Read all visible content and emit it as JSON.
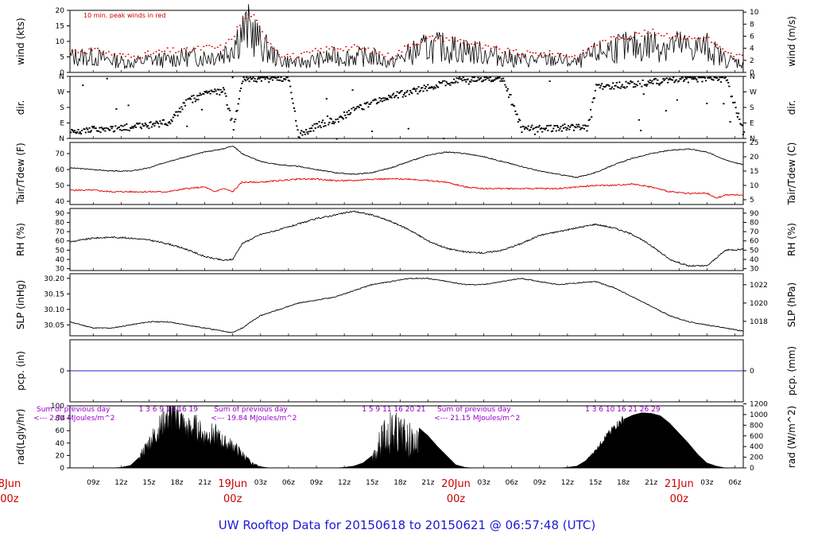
{
  "title": "UW Rooftop Data for 20150618  to  20150621 @ 06:57:48  (UTC)",
  "day_labels": [
    {
      "date": "8Jun",
      "hour": "00z",
      "t": 0
    },
    {
      "date": "19Jun",
      "hour": "00z",
      "t": 24
    },
    {
      "date": "20Jun",
      "hour": "00z",
      "t": 48
    },
    {
      "date": "21Jun",
      "hour": "00z",
      "t": 72
    }
  ],
  "x_ticks": [
    {
      "t": 9,
      "label": "09z"
    },
    {
      "t": 12,
      "label": "12z"
    },
    {
      "t": 15,
      "label": "15z"
    },
    {
      "t": 18,
      "label": "18z"
    },
    {
      "t": 21,
      "label": "21z"
    },
    {
      "t": 27,
      "label": "03z"
    },
    {
      "t": 30,
      "label": "06z"
    },
    {
      "t": 33,
      "label": "09z"
    },
    {
      "t": 36,
      "label": "12z"
    },
    {
      "t": 39,
      "label": "15z"
    },
    {
      "t": 42,
      "label": "18z"
    },
    {
      "t": 45,
      "label": "21z"
    },
    {
      "t": 51,
      "label": "03z"
    },
    {
      "t": 54,
      "label": "06z"
    },
    {
      "t": 57,
      "label": "09z"
    },
    {
      "t": 60,
      "label": "12z"
    },
    {
      "t": 63,
      "label": "15z"
    },
    {
      "t": 66,
      "label": "18z"
    },
    {
      "t": 69,
      "label": "21z"
    },
    {
      "t": 75,
      "label": "03z"
    },
    {
      "t": 78,
      "label": "06z"
    }
  ],
  "panels": {
    "wind": {
      "left_label": "wind (kts)",
      "right_label": "wind (m/s)",
      "left_ticks": [
        "0",
        "5",
        "10",
        "15",
        "20"
      ],
      "right_ticks": [
        "0",
        "2",
        "4",
        "6",
        "8",
        "10"
      ],
      "note": "10 min. peak winds in red"
    },
    "dir": {
      "left_label": "dir.",
      "right_label": "dir.",
      "left_ticks": [
        "N",
        "E",
        "S",
        "W",
        "N"
      ],
      "right_ticks": [
        "N",
        "E",
        "S",
        "W",
        "N"
      ]
    },
    "temp": {
      "left_label": "Tair/Tdew (F)",
      "right_label": "Tair/Tdew (C)",
      "left_ticks": [
        "40",
        "50",
        "60",
        "70"
      ],
      "right_ticks": [
        "5",
        "10",
        "15",
        "20",
        "25"
      ]
    },
    "rh": {
      "left_label": "RH (%)",
      "right_label": "RH (%)",
      "left_ticks": [
        "30",
        "40",
        "50",
        "60",
        "70",
        "80",
        "90"
      ],
      "right_ticks": [
        "30",
        "40",
        "50",
        "60",
        "70",
        "80",
        "90"
      ]
    },
    "slp": {
      "left_label": "SLP (inHg)",
      "right_label": "SLP (hPa)",
      "left_ticks": [
        "30.05",
        "30.10",
        "30.15",
        "30.20"
      ],
      "right_ticks": [
        "1018",
        "1020",
        "1022"
      ]
    },
    "pcp": {
      "left_label": "pcp. (in)",
      "right_label": "pcp. (mm)",
      "left_ticks": [
        "0"
      ],
      "right_ticks": [
        "0"
      ]
    },
    "rad": {
      "left_label": "rad(Lgly/hr)",
      "right_label": "rad (W/m^2)",
      "left_ticks": [
        "0",
        "20",
        "40",
        "60",
        "80",
        "100"
      ],
      "right_ticks": [
        "0",
        "200",
        "400",
        "600",
        "800",
        "1000",
        "1200"
      ],
      "daily_sums": [
        {
          "line1": "Sum of previous day",
          "line2": "<--- 2.74 MJoules/m^2",
          "t": -2
        },
        {
          "line1": "Sum of previous day",
          "line2": "<--- 19.84 MJoules/m^2",
          "t": 22
        },
        {
          "line1": "Sum of previous day",
          "line2": "<--- 21.15 MJoules/m^2",
          "t": 46
        }
      ],
      "hourly_totals": [
        {
          "t": 13.9,
          "text": "1   3   6   9   13  16   19"
        },
        {
          "t": 37.9,
          "text": "1   5   9   11   16   20   21"
        },
        {
          "t": 61.9,
          "text": "1   3   6  10   16   21   26   29"
        }
      ]
    }
  },
  "chart_data": {
    "type": "line",
    "x_unit": "hours since 2015-06-18 00z",
    "x_range": [
      6.5,
      78.9
    ],
    "series": [
      {
        "name": "wind",
        "ylim": [
          0,
          20
        ],
        "x": [
          7,
          9,
          11,
          13,
          15,
          17,
          19,
          21,
          23,
          24,
          25,
          26,
          27,
          29,
          31,
          33,
          35,
          37,
          39,
          41,
          43,
          45,
          47,
          49,
          51,
          53,
          55,
          57,
          59,
          61,
          63,
          65,
          67,
          69,
          71,
          73,
          75,
          77,
          78.9
        ],
        "y": [
          5,
          5,
          4,
          3,
          4,
          4,
          5,
          5,
          6,
          9,
          13,
          14,
          9,
          4,
          3,
          4,
          5,
          5,
          5,
          3,
          6,
          8,
          8,
          7,
          6,
          5,
          4,
          4,
          4,
          3,
          6,
          8,
          8,
          9,
          9,
          8,
          8,
          4,
          3
        ]
      },
      {
        "name": "wind_peak",
        "ylim": [
          0,
          20
        ],
        "x": [
          7,
          9,
          11,
          13,
          15,
          17,
          19,
          21,
          23,
          24,
          25,
          26,
          27,
          29,
          31,
          33,
          35,
          37,
          39,
          41,
          43,
          45,
          47,
          49,
          51,
          53,
          55,
          57,
          59,
          61,
          63,
          65,
          67,
          69,
          71,
          73,
          75,
          77,
          78.9
        ],
        "y": [
          7,
          7,
          6,
          5,
          6,
          7,
          7,
          8,
          8,
          12,
          17,
          19,
          13,
          6,
          5,
          7,
          8,
          8,
          7,
          5,
          9,
          11,
          11,
          10,
          8,
          7,
          6,
          6,
          6,
          5,
          9,
          11,
          12,
          13,
          12,
          11,
          11,
          6,
          5
        ]
      },
      {
        "name": "dir",
        "ylim": [
          0,
          360
        ],
        "x": [
          7,
          9,
          11,
          13,
          15,
          17,
          18,
          19,
          20,
          21,
          22,
          23,
          24,
          25,
          26,
          27,
          28,
          29,
          30,
          31,
          32,
          33,
          35,
          37,
          39,
          41,
          43,
          45,
          47,
          49,
          51,
          53,
          55,
          57,
          59,
          60,
          61,
          62,
          63,
          65,
          67,
          69,
          71,
          73,
          75,
          77,
          78.9
        ],
        "y": [
          40,
          55,
          60,
          70,
          80,
          100,
          150,
          220,
          240,
          260,
          270,
          280,
          60,
          350,
          355,
          350,
          350,
          355,
          350,
          20,
          50,
          80,
          110,
          170,
          210,
          250,
          270,
          300,
          330,
          350,
          355,
          350,
          60,
          60,
          65,
          70,
          70,
          60,
          300,
          310,
          320,
          330,
          340,
          350,
          355,
          350,
          30
        ]
      },
      {
        "name": "Tair",
        "ylim": [
          38,
          77
        ],
        "x": [
          6.5,
          9,
          11,
          13,
          15,
          17,
          19,
          21,
          23,
          24,
          25,
          27,
          29,
          31,
          33,
          35,
          37,
          39,
          41,
          43,
          45,
          47,
          49,
          51,
          53,
          55,
          57,
          59,
          61,
          63,
          65,
          67,
          69,
          71,
          73,
          75,
          77,
          78.9
        ],
        "y": [
          61,
          60,
          59,
          59,
          61,
          65,
          68,
          71,
          73,
          75,
          70,
          65,
          63,
          62,
          60,
          58,
          57,
          58,
          61,
          65,
          69,
          71,
          70,
          68,
          65,
          62,
          59,
          57,
          55,
          58,
          63,
          67,
          70,
          72,
          73,
          71,
          66,
          63
        ]
      },
      {
        "name": "Tdew",
        "ylim": [
          38,
          77
        ],
        "x": [
          6.5,
          9,
          11,
          13,
          15,
          17,
          19,
          21,
          22,
          23,
          24,
          25,
          27,
          29,
          31,
          33,
          35,
          37,
          39,
          41,
          43,
          45,
          47,
          49,
          51,
          53,
          55,
          57,
          59,
          61,
          63,
          65,
          67,
          69,
          71,
          73,
          75,
          76,
          77,
          78.9
        ],
        "y": [
          47,
          47,
          46,
          46,
          46,
          46,
          48,
          49,
          46,
          48,
          46,
          52,
          52,
          53,
          54,
          54,
          53,
          53,
          54,
          54,
          54,
          53,
          52,
          49,
          48,
          48,
          48,
          48,
          48,
          49,
          50,
          50,
          51,
          49,
          46,
          45,
          45,
          42,
          44,
          44
        ]
      },
      {
        "name": "RH",
        "ylim": [
          28,
          95
        ],
        "x": [
          6.5,
          9,
          11,
          13,
          15,
          17,
          19,
          21,
          23,
          24,
          25,
          27,
          29,
          31,
          33,
          35,
          37,
          39,
          41,
          43,
          45,
          47,
          49,
          51,
          53,
          55,
          57,
          59,
          61,
          63,
          65,
          67,
          69,
          71,
          73,
          75,
          77,
          78.9
        ],
        "y": [
          59,
          63,
          64,
          63,
          61,
          57,
          51,
          43,
          39,
          40,
          57,
          67,
          72,
          78,
          84,
          88,
          92,
          88,
          81,
          72,
          60,
          52,
          48,
          47,
          50,
          57,
          66,
          70,
          74,
          78,
          74,
          67,
          55,
          40,
          33,
          33,
          50,
          51
        ]
      },
      {
        "name": "SLP",
        "ylim": [
          30.015,
          30.215
        ],
        "x": [
          6.5,
          9,
          11,
          13,
          15,
          17,
          19,
          21,
          23,
          24,
          25,
          27,
          29,
          31,
          33,
          35,
          37,
          39,
          41,
          43,
          45,
          47,
          49,
          51,
          53,
          55,
          57,
          59,
          61,
          63,
          65,
          67,
          69,
          71,
          73,
          75,
          77,
          78.9
        ],
        "y": [
          30.06,
          30.04,
          30.04,
          30.05,
          30.06,
          30.06,
          30.05,
          30.04,
          30.03,
          30.025,
          30.04,
          30.08,
          30.1,
          30.12,
          30.13,
          30.14,
          30.16,
          30.18,
          30.19,
          30.2,
          30.2,
          30.19,
          30.18,
          30.18,
          30.19,
          30.2,
          30.19,
          30.18,
          30.185,
          30.19,
          30.17,
          30.14,
          30.11,
          30.08,
          30.06,
          30.05,
          30.04,
          30.03
        ]
      },
      {
        "name": "pcp",
        "ylim": [
          -1,
          1
        ],
        "x": [
          6.5,
          78.9
        ],
        "y": [
          0,
          0
        ]
      },
      {
        "name": "rad",
        "ylim": [
          0,
          100
        ],
        "x": [
          11,
          12,
          13,
          14,
          15,
          16,
          17,
          18,
          19,
          20,
          21,
          22,
          23,
          24,
          25,
          26,
          27,
          28,
          35,
          36,
          37,
          38,
          39,
          40,
          41,
          42,
          43,
          44,
          45,
          46,
          47,
          48,
          49,
          50,
          51,
          52,
          59,
          60,
          61,
          62,
          63,
          64,
          65,
          66,
          67,
          68,
          69,
          70,
          71,
          72,
          73,
          74,
          75,
          76,
          77
        ],
        "y": [
          0,
          1,
          4,
          18,
          40,
          60,
          82,
          88,
          60,
          65,
          50,
          55,
          40,
          35,
          22,
          8,
          2,
          0,
          0,
          1,
          3,
          8,
          20,
          70,
          100,
          85,
          75,
          65,
          52,
          35,
          20,
          5,
          1,
          0,
          0,
          0,
          0,
          1,
          3,
          12,
          28,
          48,
          65,
          78,
          85,
          89,
          88,
          84,
          72,
          56,
          40,
          22,
          8,
          3,
          0
        ]
      }
    ]
  }
}
